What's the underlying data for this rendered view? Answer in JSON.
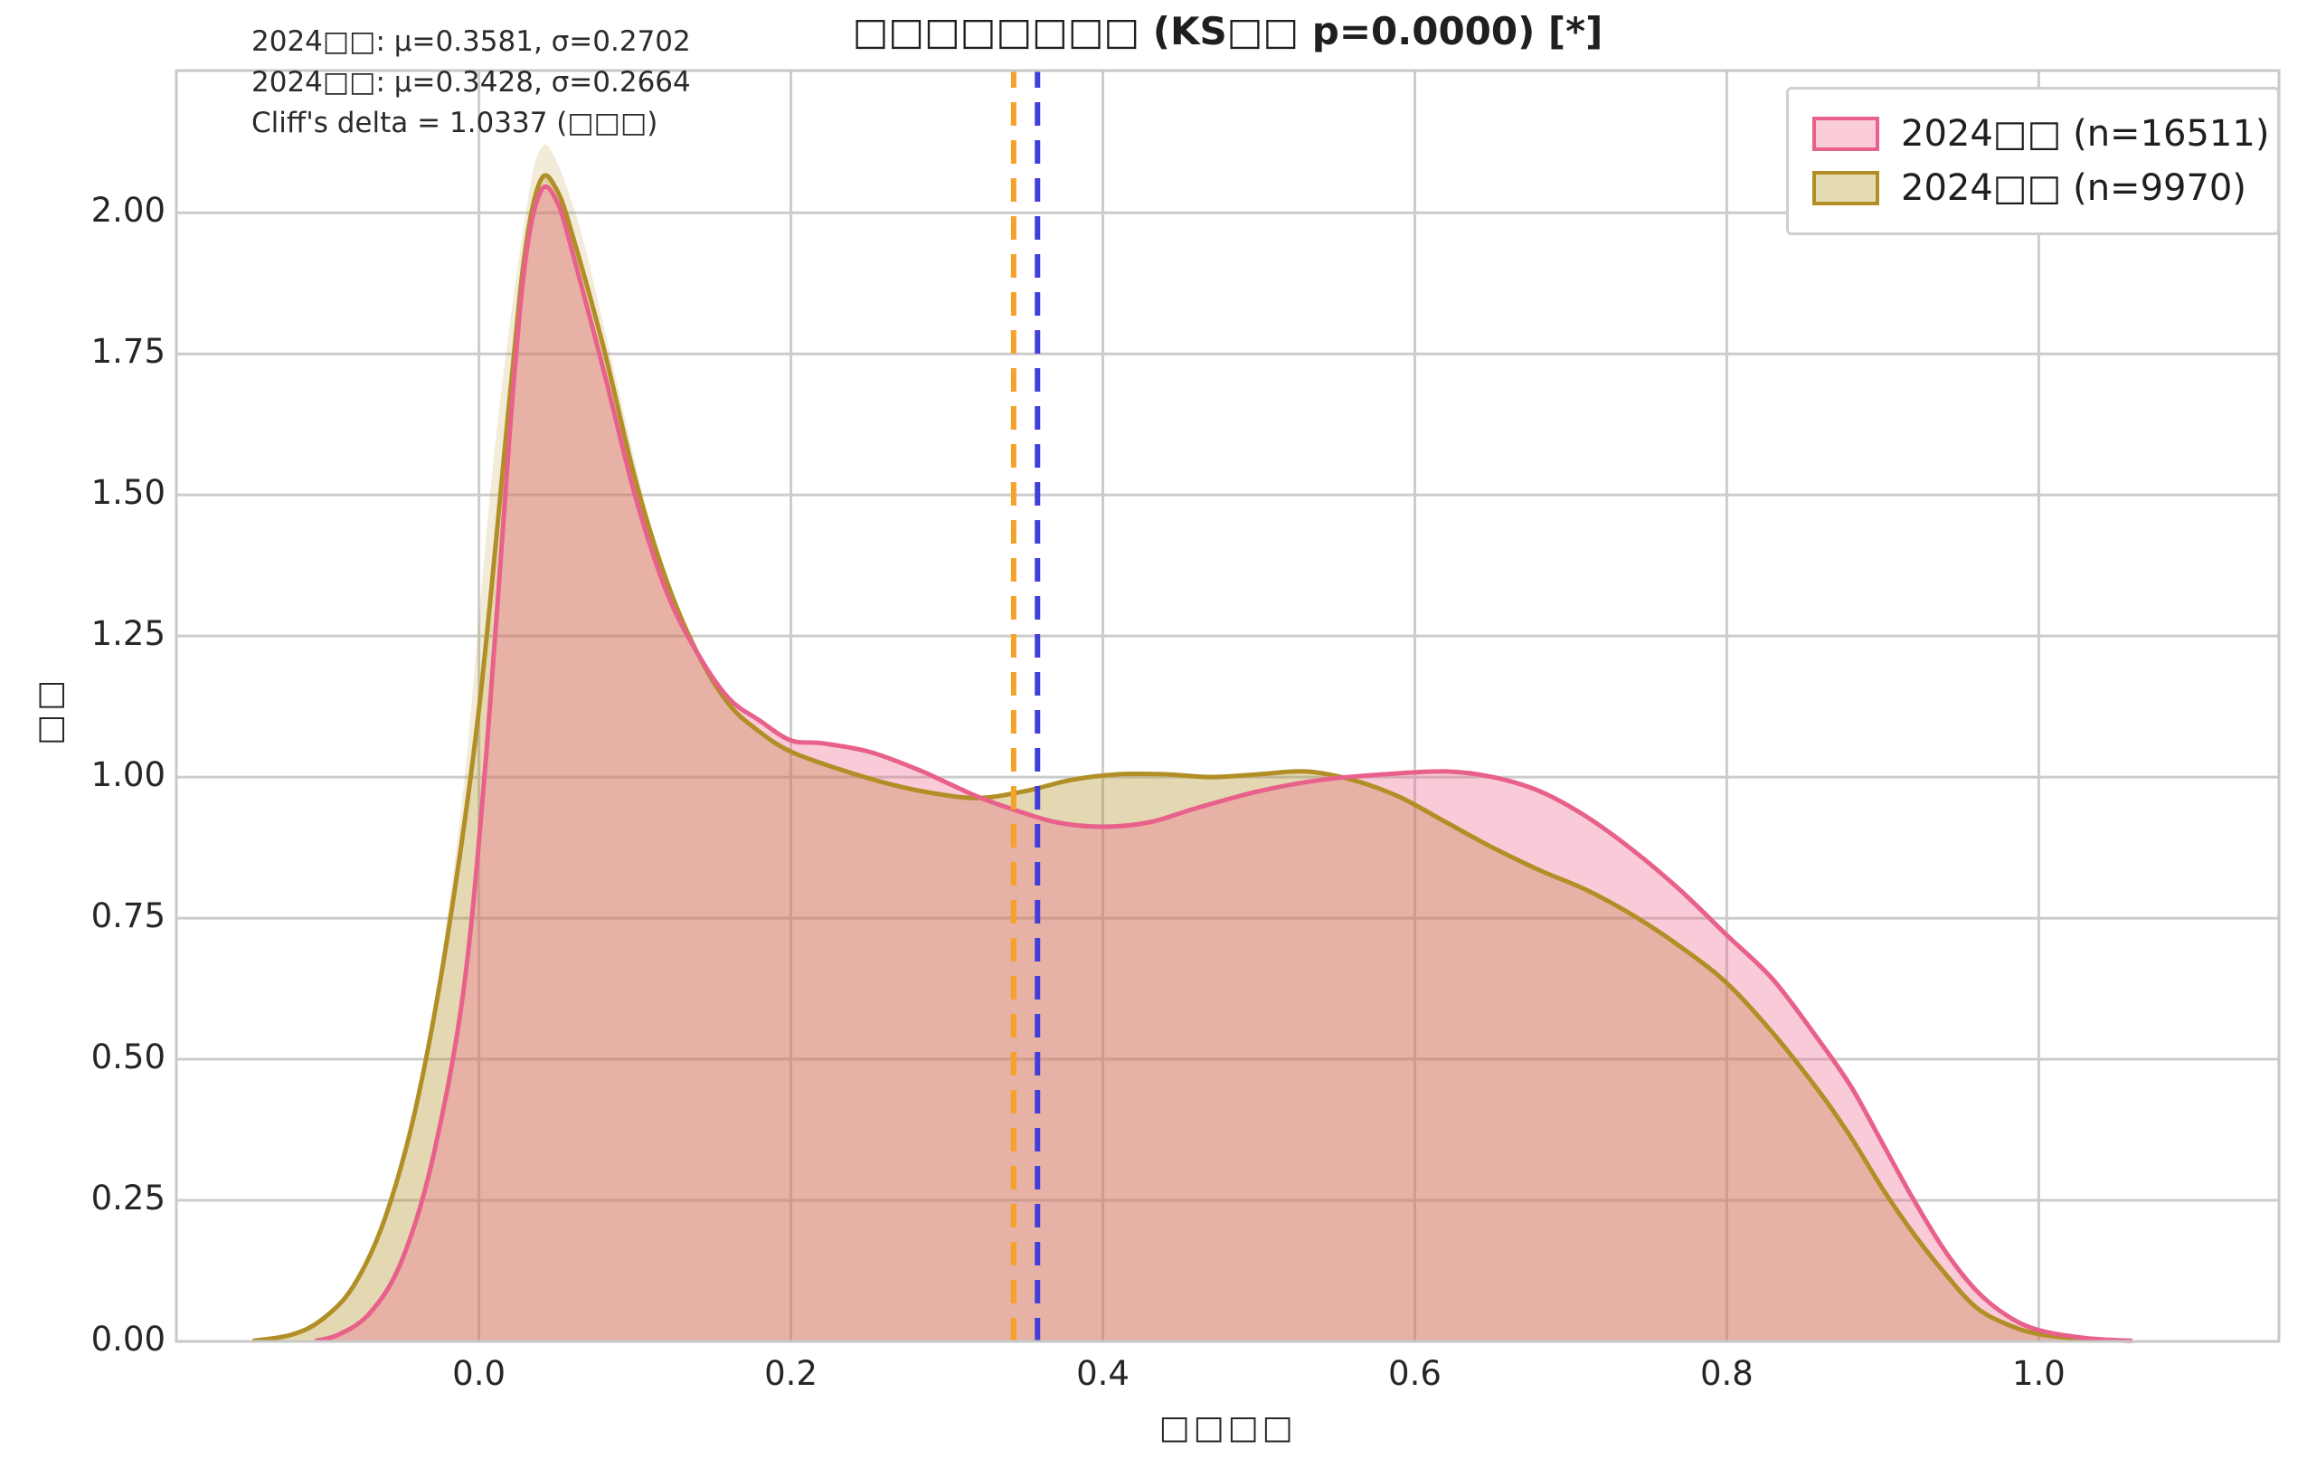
{
  "chart_data": {
    "type": "area",
    "title": "□□□□□□□□ (KS□□ p=0.0000) [*]",
    "xlabel": "□□□□",
    "ylabel": "□□",
    "annotations": [
      "2024□□: μ=0.3581, σ=0.2702",
      "2024□□: μ=0.3428, σ=0.2664",
      "Cliff's delta = 1.0337 (□□□)"
    ],
    "legend_position": "upper right",
    "grid": true,
    "colors": {
      "grid": "#cccccc",
      "spine": "#c8c8c8",
      "text": "#262626",
      "mean_line_blue": "#4040d8",
      "mean_line_orange": "#f5a228"
    },
    "axes": {
      "xlim": [
        -0.194,
        1.154
      ],
      "ylim": [
        0,
        2.252
      ],
      "xticks": [
        {
          "v": 0.0,
          "label": "0.0"
        },
        {
          "v": 0.2,
          "label": "0.2"
        },
        {
          "v": 0.4,
          "label": "0.4"
        },
        {
          "v": 0.6,
          "label": "0.6"
        },
        {
          "v": 0.8,
          "label": "0.8"
        },
        {
          "v": 1.0,
          "label": "1.0"
        }
      ],
      "yticks": [
        {
          "v": 0.0,
          "label": "0.00"
        },
        {
          "v": 0.25,
          "label": "0.25"
        },
        {
          "v": 0.5,
          "label": "0.50"
        },
        {
          "v": 0.75,
          "label": "0.75"
        },
        {
          "v": 1.0,
          "label": "1.00"
        },
        {
          "v": 1.25,
          "label": "1.25"
        },
        {
          "v": 1.5,
          "label": "1.50"
        },
        {
          "v": 1.75,
          "label": "1.75"
        },
        {
          "v": 2.0,
          "label": "2.00"
        }
      ]
    },
    "legend": [
      {
        "label": "2024□□ (n=16511)",
        "line": "#e8618a",
        "fill": "#f9ccd8"
      },
      {
        "label": "2024□□ (n=9970)",
        "line": "#b18f26",
        "fill": "#e6dcb4"
      }
    ],
    "mean_lines": [
      {
        "x": 0.3428,
        "color": "#f5a228",
        "style": "dashed"
      },
      {
        "x": 0.3581,
        "color": "#4040d8",
        "style": "dashed"
      }
    ],
    "series": [
      {
        "name": "2024□□ (n=9970)",
        "n": 9970,
        "mu": 0.3428,
        "sigma": 0.2664,
        "line": "#b18f26",
        "fill": "rgba(177,143,38,0.35)",
        "cap_fill": "rgba(177,143,38,0.18)",
        "points": [
          [
            -0.145,
            0.001
          ],
          [
            -0.12,
            0.012
          ],
          [
            -0.1,
            0.04
          ],
          [
            -0.08,
            0.1
          ],
          [
            -0.06,
            0.22
          ],
          [
            -0.04,
            0.42
          ],
          [
            -0.02,
            0.72
          ],
          [
            0.0,
            1.12
          ],
          [
            0.02,
            1.68
          ],
          [
            0.03,
            1.94
          ],
          [
            0.04,
            2.06
          ],
          [
            0.05,
            2.04
          ],
          [
            0.06,
            1.96
          ],
          [
            0.08,
            1.76
          ],
          [
            0.1,
            1.53
          ],
          [
            0.12,
            1.35
          ],
          [
            0.14,
            1.22
          ],
          [
            0.16,
            1.13
          ],
          [
            0.18,
            1.08
          ],
          [
            0.2,
            1.045
          ],
          [
            0.23,
            1.015
          ],
          [
            0.26,
            0.99
          ],
          [
            0.29,
            0.972
          ],
          [
            0.32,
            0.963
          ],
          [
            0.35,
            0.975
          ],
          [
            0.38,
            0.995
          ],
          [
            0.41,
            1.005
          ],
          [
            0.44,
            1.005
          ],
          [
            0.47,
            1.0
          ],
          [
            0.5,
            1.005
          ],
          [
            0.53,
            1.01
          ],
          [
            0.56,
            0.995
          ],
          [
            0.59,
            0.965
          ],
          [
            0.62,
            0.92
          ],
          [
            0.65,
            0.875
          ],
          [
            0.68,
            0.835
          ],
          [
            0.71,
            0.8
          ],
          [
            0.74,
            0.755
          ],
          [
            0.77,
            0.7
          ],
          [
            0.8,
            0.635
          ],
          [
            0.83,
            0.545
          ],
          [
            0.86,
            0.44
          ],
          [
            0.88,
            0.36
          ],
          [
            0.9,
            0.27
          ],
          [
            0.92,
            0.19
          ],
          [
            0.94,
            0.12
          ],
          [
            0.96,
            0.06
          ],
          [
            0.98,
            0.03
          ],
          [
            1.0,
            0.013
          ],
          [
            1.03,
            0.004
          ],
          [
            1.06,
            0.001
          ]
        ],
        "cap": [
          [
            -0.03,
            0.56
          ],
          [
            -0.01,
            0.98
          ],
          [
            0.01,
            1.58
          ],
          [
            0.03,
            2.0
          ],
          [
            0.04,
            2.115
          ],
          [
            0.05,
            2.09
          ],
          [
            0.065,
            1.97
          ],
          [
            0.08,
            1.8
          ],
          [
            0.1,
            1.56
          ],
          [
            0.115,
            1.38
          ]
        ]
      },
      {
        "name": "2024□□ (n=16511)",
        "n": 16511,
        "mu": 0.3581,
        "sigma": 0.2702,
        "line": "#e8618a",
        "fill": "rgba(238,97,138,0.33)",
        "points": [
          [
            -0.105,
            0.001
          ],
          [
            -0.09,
            0.012
          ],
          [
            -0.07,
            0.05
          ],
          [
            -0.05,
            0.14
          ],
          [
            -0.03,
            0.32
          ],
          [
            -0.01,
            0.62
          ],
          [
            0.005,
            1.05
          ],
          [
            0.02,
            1.62
          ],
          [
            0.03,
            1.92
          ],
          [
            0.04,
            2.04
          ],
          [
            0.05,
            2.02
          ],
          [
            0.06,
            1.93
          ],
          [
            0.08,
            1.72
          ],
          [
            0.1,
            1.5
          ],
          [
            0.12,
            1.33
          ],
          [
            0.14,
            1.22
          ],
          [
            0.16,
            1.14
          ],
          [
            0.18,
            1.1
          ],
          [
            0.2,
            1.065
          ],
          [
            0.22,
            1.06
          ],
          [
            0.25,
            1.045
          ],
          [
            0.28,
            1.015
          ],
          [
            0.3,
            0.99
          ],
          [
            0.32,
            0.965
          ],
          [
            0.34,
            0.945
          ],
          [
            0.37,
            0.92
          ],
          [
            0.4,
            0.912
          ],
          [
            0.43,
            0.92
          ],
          [
            0.46,
            0.945
          ],
          [
            0.5,
            0.975
          ],
          [
            0.54,
            0.995
          ],
          [
            0.58,
            1.005
          ],
          [
            0.62,
            1.01
          ],
          [
            0.65,
            1.0
          ],
          [
            0.68,
            0.975
          ],
          [
            0.71,
            0.93
          ],
          [
            0.74,
            0.87
          ],
          [
            0.77,
            0.8
          ],
          [
            0.8,
            0.72
          ],
          [
            0.83,
            0.64
          ],
          [
            0.86,
            0.53
          ],
          [
            0.88,
            0.45
          ],
          [
            0.9,
            0.35
          ],
          [
            0.92,
            0.25
          ],
          [
            0.94,
            0.16
          ],
          [
            0.96,
            0.09
          ],
          [
            0.98,
            0.045
          ],
          [
            1.0,
            0.02
          ],
          [
            1.03,
            0.006
          ],
          [
            1.06,
            0.001
          ]
        ]
      }
    ]
  }
}
